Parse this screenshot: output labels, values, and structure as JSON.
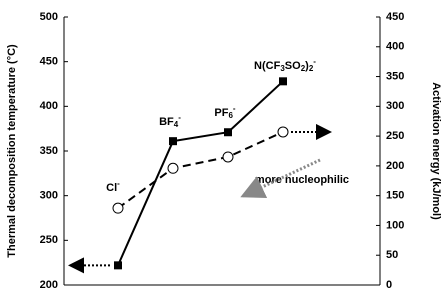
{
  "chart_data": {
    "type": "line",
    "categories": [
      "Cl-",
      "BF4-",
      "PF6-",
      "N(CF3SO2)2-"
    ],
    "series": [
      {
        "color": "#000000",
        "style": "solid",
        "marker": "square",
        "values": [
          222,
          361,
          371,
          428
        ]
      },
      {
        "color": "#000000",
        "style": "dashed",
        "marker": "circle",
        "axis": "y2",
        "values": [
          129,
          196,
          215,
          257
        ]
      }
    ],
    "ylabel": "Thermal decomposition temperature (°C)",
    "y2label": "Activation energy (kJ/mol)",
    "ylim": [
      200,
      500
    ],
    "yticks": [
      200,
      250,
      300,
      350,
      400,
      450,
      500
    ],
    "y2lim": [
      0,
      450
    ],
    "y2ticks": [
      0,
      50,
      100,
      150,
      200,
      250,
      300,
      350,
      400,
      450
    ],
    "annotation": "more nucleophilic"
  }
}
